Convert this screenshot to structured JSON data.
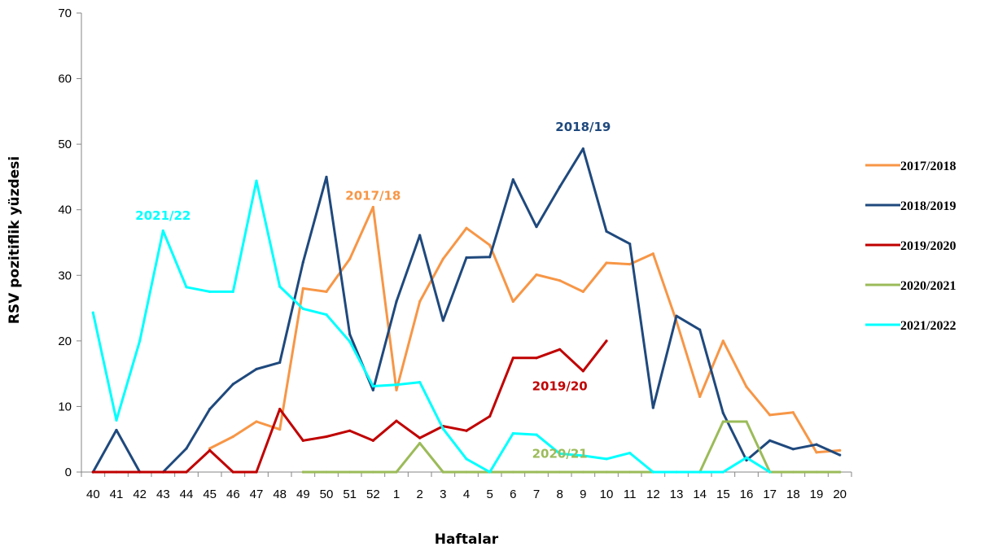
{
  "chart_data": {
    "type": "line",
    "xlabel": "Haftalar",
    "ylabel": "RSV pozitiflik yüzdesi",
    "ylim": [
      0,
      70
    ],
    "yticks": [
      0,
      10,
      20,
      30,
      40,
      50,
      60,
      70
    ],
    "grid": false,
    "legend_position": "right",
    "x": [
      "40",
      "41",
      "42",
      "43",
      "44",
      "45",
      "46",
      "47",
      "48",
      "49",
      "50",
      "51",
      "52",
      "1",
      "2",
      "3",
      "4",
      "5",
      "6",
      "7",
      "8",
      "9",
      "10",
      "11",
      "12",
      "13",
      "14",
      "15",
      "16",
      "17",
      "18",
      "19",
      "20"
    ],
    "series": [
      {
        "name": "2017/2018",
        "color": "#F79646",
        "values": [
          null,
          null,
          null,
          null,
          null,
          3.6,
          5.4,
          7.7,
          6.5,
          28,
          27.5,
          32.5,
          40.4,
          12.5,
          26,
          32.5,
          37.2,
          34.6,
          26,
          30.1,
          29.2,
          27.5,
          31.9,
          31.7,
          33.3,
          23,
          11.5,
          20,
          13,
          8.7,
          9.1,
          3,
          3.3
        ]
      },
      {
        "name": "2018/2019",
        "color": "#1F497D",
        "values": [
          0,
          6.4,
          0,
          0,
          3.6,
          9.6,
          13.4,
          15.7,
          16.7,
          32,
          45,
          21,
          12.5,
          26,
          36.1,
          23.1,
          32.7,
          32.8,
          44.6,
          37.4,
          43.5,
          49.3,
          36.7,
          34.8,
          9.8,
          23.8,
          21.7,
          9,
          1.8,
          4.8,
          3.5,
          4.2,
          2.6
        ]
      },
      {
        "name": "2019/2020",
        "color": "#C00000",
        "values": [
          0,
          0,
          0,
          0,
          0,
          3.3,
          0,
          0,
          9.6,
          4.8,
          5.4,
          6.3,
          4.8,
          7.8,
          5.2,
          7,
          6.3,
          8.5,
          17.4,
          17.4,
          18.7,
          15.4,
          20,
          null,
          null,
          null,
          null,
          null,
          null,
          null,
          null,
          null,
          null
        ]
      },
      {
        "name": "2020/2021",
        "color": "#9BBB59",
        "values": [
          null,
          null,
          null,
          null,
          null,
          null,
          null,
          null,
          null,
          0,
          0,
          0,
          0,
          0,
          4.4,
          0,
          0,
          0,
          0,
          0,
          0,
          0,
          0,
          0,
          0,
          0,
          0,
          7.7,
          7.7,
          0,
          0,
          0,
          0
        ]
      },
      {
        "name": "2021/2022",
        "color": "#00FFFF",
        "values": [
          24.3,
          7.9,
          20,
          36.8,
          28.2,
          27.5,
          27.5,
          44.4,
          28.3,
          24.9,
          24,
          19.9,
          13.1,
          13.3,
          13.7,
          6.6,
          2,
          0,
          5.9,
          5.7,
          2.8,
          2.5,
          2,
          2.9,
          0,
          0,
          0,
          0,
          2.2,
          0,
          null,
          null,
          null
        ]
      }
    ],
    "annotations": [
      {
        "text": "2018/19",
        "color": "#1F497D",
        "near_x": "9",
        "near_y": 52
      },
      {
        "text": "2017/18",
        "color": "#F79646",
        "near_x": "52",
        "near_y": 41.5
      },
      {
        "text": "2021/22",
        "color": "#00FFFF",
        "near_x": "43",
        "near_y": 38.5
      },
      {
        "text": "2019/20",
        "color": "#C00000",
        "near_x": "8",
        "near_y": 12.5
      },
      {
        "text": "2020/21",
        "color": "#9BBB59",
        "near_x": "8",
        "near_y": 2.2
      }
    ]
  }
}
